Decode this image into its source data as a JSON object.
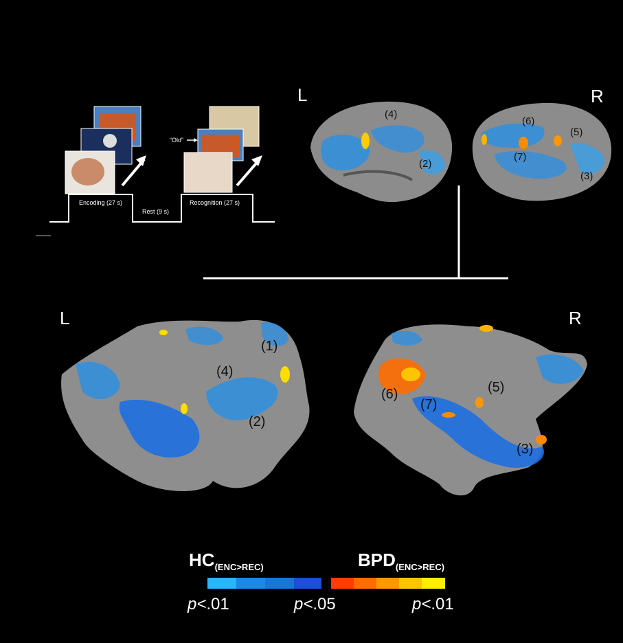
{
  "task": {
    "encoding_label": "Encoding (27 s)",
    "rest_label": "Rest (9 s)",
    "recognition_label": "Recognition (27 s)",
    "old_label": "“Old”"
  },
  "hemispheres": {
    "lateral_left": "L",
    "lateral_right": "R",
    "flat_left": "L",
    "flat_right": "R"
  },
  "regions": {
    "lat_left_4": "(4)",
    "lat_left_2": "(2)",
    "lat_right_6": "(6)",
    "lat_right_5": "(5)",
    "lat_right_7": "(7)",
    "lat_right_3": "(3)",
    "flat_left_1": "(1)",
    "flat_left_4": "(4)",
    "flat_left_2": "(2)",
    "flat_right_6": "(6)",
    "flat_right_7": "(7)",
    "flat_right_5": "(5)",
    "flat_right_3": "(3)"
  },
  "legend": {
    "hc_main": "HC",
    "hc_sub": "(ENC>REC)",
    "bpd_main": "BPD",
    "bpd_sub": "(ENC>REC)",
    "p_left": ".01",
    "p_mid": ".05",
    "p_right": ".01",
    "p_prefix": "p<",
    "blue_colors": [
      "#29b6f6",
      "#1e88e5",
      "#1976d2",
      "#1a4fd6"
    ],
    "warm_colors": [
      "#ff3d00",
      "#ff6d00",
      "#ff9800",
      "#ffc400",
      "#ffee00"
    ]
  }
}
